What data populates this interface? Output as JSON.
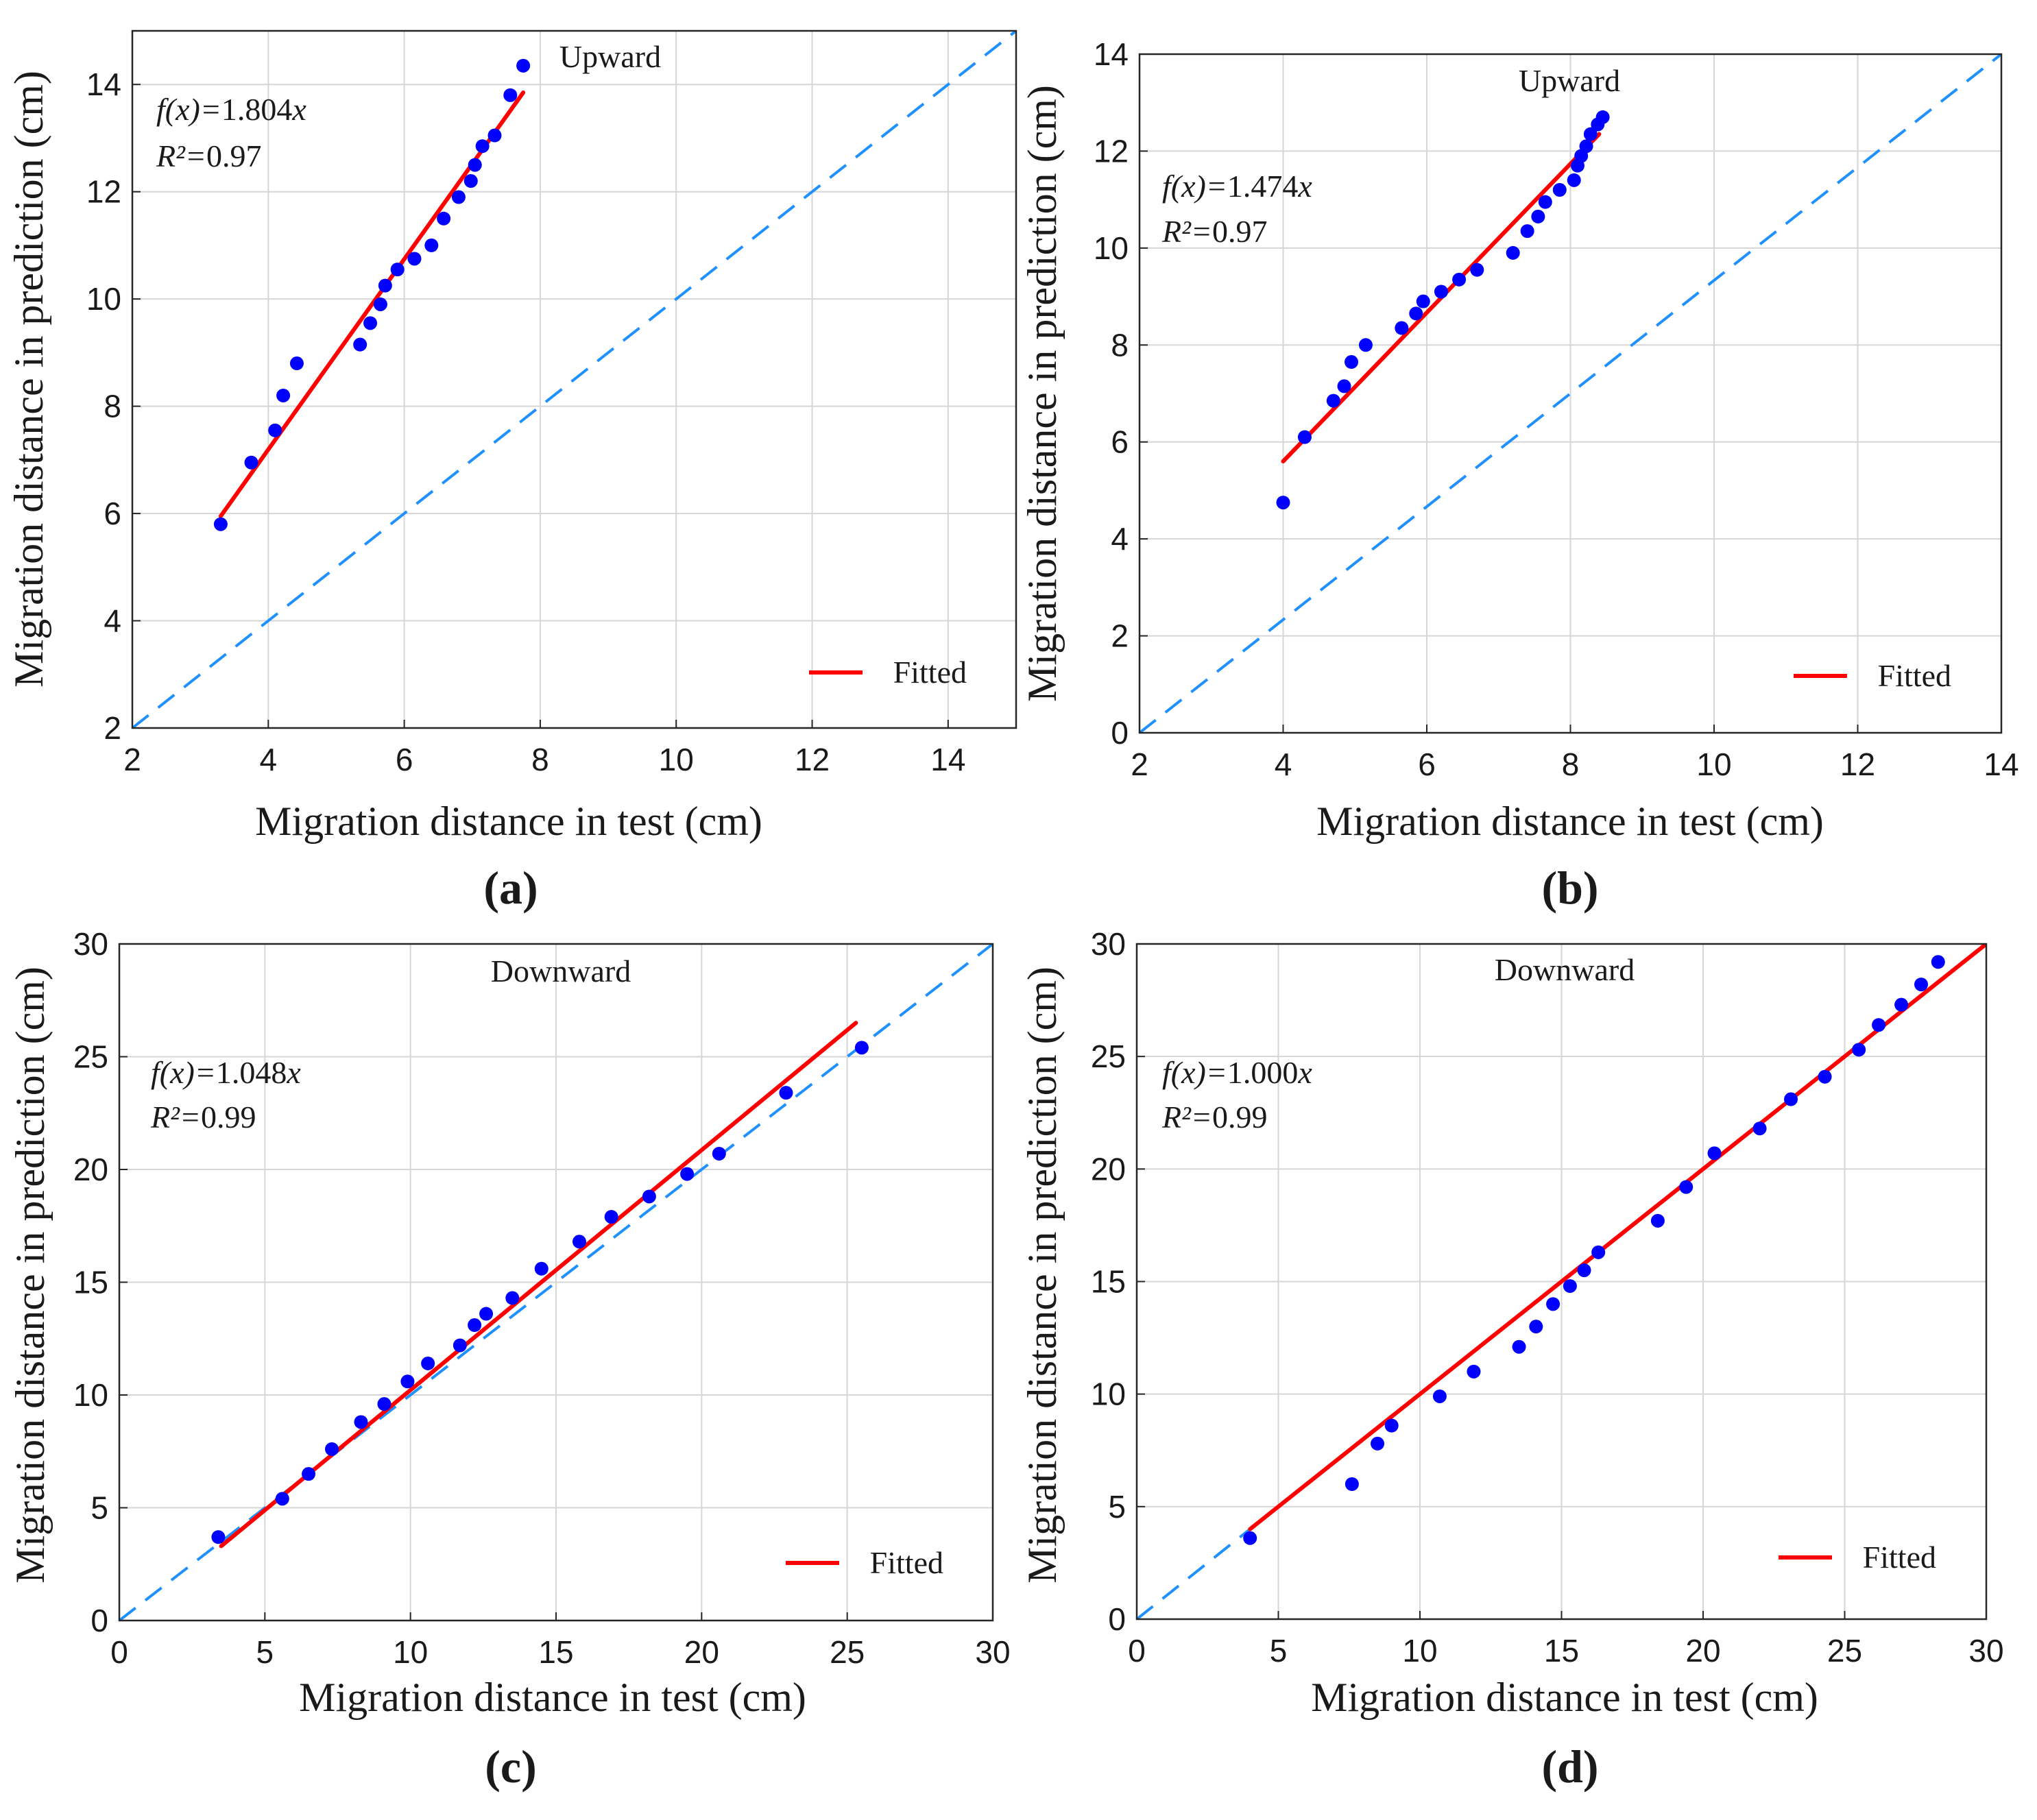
{
  "chart_data": [
    {
      "type": "scatter",
      "panel_label": "(a)",
      "title": "Upward",
      "xlabel": "Migration distance in test (cm)",
      "ylabel": "Migration distance in prediction (cm)",
      "xlim": [
        2,
        15
      ],
      "ylim": [
        2,
        15
      ],
      "xticks": [
        2,
        4,
        6,
        8,
        10,
        12,
        14
      ],
      "yticks": [
        2,
        4,
        6,
        8,
        10,
        12,
        14
      ],
      "grid": true,
      "equation_prefix": "f(x)=",
      "equation_coef": "1.804",
      "equation_var": "x",
      "r2_prefix": "R²=",
      "r2_value": "0.97",
      "legend": "Fitted",
      "legend_position": "bottom-right",
      "identity_line": [
        [
          2,
          2
        ],
        [
          15,
          15
        ]
      ],
      "fitted_line": [
        [
          3.3,
          5.95
        ],
        [
          7.75,
          13.85
        ]
      ],
      "points_x": [
        3.3,
        3.75,
        4.1,
        4.22,
        4.42,
        5.35,
        5.5,
        5.65,
        5.72,
        5.9,
        6.15,
        6.4,
        6.58,
        6.8,
        6.98,
        7.04,
        7.15,
        7.33,
        7.56,
        7.75
      ],
      "points_y": [
        5.8,
        6.95,
        7.55,
        8.2,
        8.8,
        9.15,
        9.55,
        9.9,
        10.25,
        10.55,
        10.75,
        11.0,
        11.5,
        11.9,
        12.2,
        12.5,
        12.85,
        13.05,
        13.8,
        14.35
      ]
    },
    {
      "type": "scatter",
      "panel_label": "(b)",
      "title": "Upward",
      "xlabel": "Migration distance in test (cm)",
      "ylabel": "Migration distance in prediction (cm)",
      "xlim": [
        2,
        14
      ],
      "ylim": [
        0,
        14
      ],
      "xticks": [
        2,
        4,
        6,
        8,
        10,
        12,
        14
      ],
      "yticks": [
        0,
        2,
        4,
        6,
        8,
        10,
        12,
        14
      ],
      "grid": true,
      "equation_prefix": "f(x)=",
      "equation_coef": "1.474",
      "equation_var": "x",
      "r2_prefix": "R²=",
      "r2_value": "0.97",
      "legend": "Fitted",
      "legend_position": "bottom-right",
      "identity_line": [
        [
          2,
          0
        ],
        [
          14,
          14
        ]
      ],
      "fitted_line": [
        [
          4.0,
          5.6
        ],
        [
          8.4,
          12.35
        ]
      ],
      "points_x": [
        4.0,
        4.3,
        4.7,
        4.85,
        4.95,
        5.15,
        5.65,
        5.85,
        5.95,
        6.2,
        6.45,
        6.7,
        7.2,
        7.4,
        7.55,
        7.65,
        7.85,
        8.05,
        8.1,
        8.15,
        8.22,
        8.28,
        8.38,
        8.45
      ],
      "points_y": [
        4.75,
        6.1,
        6.85,
        7.15,
        7.65,
        8.0,
        8.35,
        8.65,
        8.9,
        9.1,
        9.35,
        9.55,
        9.9,
        10.35,
        10.65,
        10.95,
        11.2,
        11.4,
        11.7,
        11.9,
        12.1,
        12.35,
        12.55,
        12.7
      ]
    },
    {
      "type": "scatter",
      "panel_label": "(c)",
      "title": "Downward",
      "xlabel": "Migration distance in test (cm)",
      "ylabel": "Migration distance in prediction (cm)",
      "xlim": [
        0,
        30
      ],
      "ylim": [
        0,
        30
      ],
      "xticks": [
        0,
        5,
        10,
        15,
        20,
        25,
        30
      ],
      "yticks": [
        0,
        5,
        10,
        15,
        20,
        25,
        30
      ],
      "grid": true,
      "equation_prefix": "f(x)=",
      "equation_coef": "1.048",
      "equation_var": "x",
      "r2_prefix": "R²=",
      "r2_value": "0.99",
      "legend": "Fitted",
      "legend_position": "bottom-right",
      "identity_line": [
        [
          0,
          0
        ],
        [
          30,
          30
        ]
      ],
      "fitted_line": [
        [
          3.5,
          3.3
        ],
        [
          25.3,
          26.5
        ]
      ],
      "points_x": [
        3.4,
        5.6,
        6.5,
        7.3,
        8.3,
        9.1,
        9.9,
        10.6,
        11.7,
        12.2,
        12.6,
        13.5,
        14.5,
        15.8,
        16.9,
        18.2,
        19.5,
        20.6,
        22.9,
        25.5
      ],
      "points_y": [
        3.7,
        5.4,
        6.5,
        7.6,
        8.8,
        9.6,
        10.6,
        11.4,
        12.2,
        13.1,
        13.6,
        14.3,
        15.6,
        16.8,
        17.9,
        18.8,
        19.8,
        20.7,
        23.4,
        25.4
      ]
    },
    {
      "type": "scatter",
      "panel_label": "(d)",
      "title": "Downward",
      "xlabel": "Migration distance in test (cm)",
      "ylabel": "Migration distance in prediction (cm)",
      "xlim": [
        0,
        30
      ],
      "ylim": [
        0,
        30
      ],
      "xticks": [
        0,
        5,
        10,
        15,
        20,
        25,
        30
      ],
      "yticks": [
        0,
        5,
        10,
        15,
        20,
        25,
        30
      ],
      "grid": true,
      "equation_prefix": "f(x)=",
      "equation_coef": "1.000",
      "equation_var": "x",
      "r2_prefix": "R²=",
      "r2_value": "0.99",
      "legend": "Fitted",
      "legend_position": "bottom-right",
      "identity_line": [
        [
          0,
          0
        ],
        [
          30,
          30
        ]
      ],
      "fitted_line": [
        [
          4.0,
          4.0
        ],
        [
          30,
          30
        ]
      ],
      "points_x": [
        4.0,
        7.6,
        8.5,
        9.0,
        10.7,
        11.9,
        13.5,
        14.1,
        14.7,
        15.3,
        15.8,
        16.3,
        18.4,
        19.4,
        20.4,
        22.0,
        23.1,
        24.3,
        25.5,
        26.2,
        27.0,
        27.7,
        28.3
      ],
      "points_y": [
        3.6,
        6.0,
        7.8,
        8.6,
        9.9,
        11.0,
        12.1,
        13.0,
        14.0,
        14.8,
        15.5,
        16.3,
        17.7,
        19.2,
        20.7,
        21.8,
        23.1,
        24.1,
        25.3,
        26.4,
        27.3,
        28.2,
        29.2
      ]
    }
  ],
  "colors": {
    "points": "#0000ff",
    "fitted": "#ff0000",
    "identity": "#1e90ff",
    "grid": "#d6d6d6",
    "axis": "#262626"
  }
}
